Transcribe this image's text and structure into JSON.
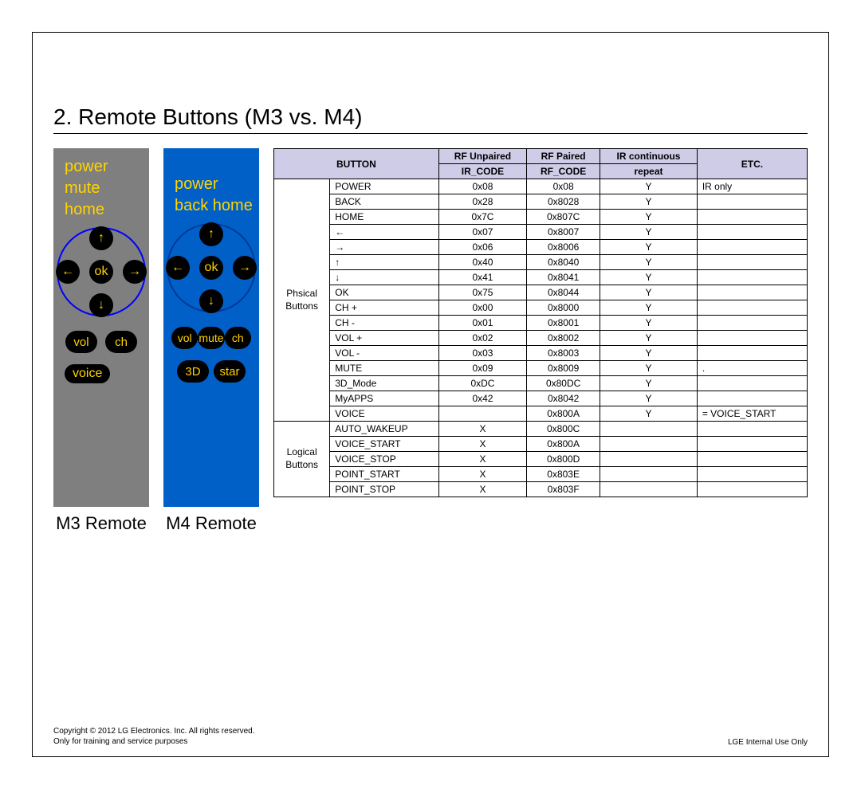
{
  "heading": "2. Remote Buttons (M3 vs. M4)",
  "remotes": {
    "m3": {
      "caption": "M3 Remote",
      "top_labels": [
        "power",
        "mute",
        "home"
      ],
      "ok": "ok",
      "arrows": {
        "up": "↑",
        "down": "↓",
        "left": "←",
        "right": "→"
      },
      "row_btns": [
        "vol",
        "ch"
      ],
      "voice": "voice"
    },
    "m4": {
      "caption": "M4 Remote",
      "top_labels": [
        "power",
        "back home"
      ],
      "ok": "ok",
      "arrows": {
        "up": "↑",
        "down": "↓",
        "left": "←",
        "right": "→"
      },
      "row_btns": [
        "vol",
        "mute",
        "ch"
      ],
      "row_3d": [
        "3D",
        "star"
      ]
    }
  },
  "table": {
    "headers": {
      "button": "BUTTON",
      "ir": "RF Unpaired",
      "ir_sub": "IR_CODE",
      "rf": "RF Paired",
      "rf_sub": "RF_CODE",
      "repeat": "IR continuous",
      "repeat_sub": "repeat",
      "etc": "ETC."
    },
    "groups": [
      {
        "name": "Phsical\nButtons",
        "rows": [
          {
            "btn": "POWER",
            "ir": "0x08",
            "rf": "0x08",
            "rep": "Y",
            "etc": "IR only"
          },
          {
            "btn": "BACK",
            "ir": "0x28",
            "rf": "0x8028",
            "rep": "Y",
            "etc": ""
          },
          {
            "btn": "HOME",
            "ir": "0x7C",
            "rf": "0x807C",
            "rep": "Y",
            "etc": ""
          },
          {
            "btn": "←",
            "ir": "0x07",
            "rf": "0x8007",
            "rep": "Y",
            "etc": ""
          },
          {
            "btn": "→",
            "ir": "0x06",
            "rf": "0x8006",
            "rep": "Y",
            "etc": ""
          },
          {
            "btn": "↑",
            "ir": "0x40",
            "rf": "0x8040",
            "rep": "Y",
            "etc": ""
          },
          {
            "btn": "↓",
            "ir": "0x41",
            "rf": "0x8041",
            "rep": "Y",
            "etc": ""
          },
          {
            "btn": "OK",
            "ir": "0x75",
            "rf": "0x8044",
            "rep": "Y",
            "etc": ""
          },
          {
            "btn": "CH +",
            "ir": "0x00",
            "rf": "0x8000",
            "rep": "Y",
            "etc": ""
          },
          {
            "btn": "CH -",
            "ir": "0x01",
            "rf": "0x8001",
            "rep": "Y",
            "etc": ""
          },
          {
            "btn": "VOL +",
            "ir": "0x02",
            "rf": "0x8002",
            "rep": "Y",
            "etc": ""
          },
          {
            "btn": "VOL -",
            "ir": "0x03",
            "rf": "0x8003",
            "rep": "Y",
            "etc": ""
          },
          {
            "btn": "MUTE",
            "ir": "0x09",
            "rf": "0x8009",
            "rep": "Y",
            "etc": "."
          },
          {
            "btn": "3D_Mode",
            "ir": "0xDC",
            "rf": "0x80DC",
            "rep": "Y",
            "etc": ""
          },
          {
            "btn": "MyAPPS",
            "ir": "0x42",
            "rf": "0x8042",
            "rep": "Y",
            "etc": ""
          },
          {
            "btn": "VOICE",
            "ir": "",
            "rf": "0x800A",
            "rep": "Y",
            "etc": "= VOICE_START"
          }
        ]
      },
      {
        "name": "Logical\nButtons",
        "rows": [
          {
            "btn": "AUTO_WAKEUP",
            "ir": "X",
            "rf": "0x800C",
            "rep": "",
            "etc": ""
          },
          {
            "btn": "VOICE_START",
            "ir": "X",
            "rf": "0x800A",
            "rep": "",
            "etc": ""
          },
          {
            "btn": "VOICE_STOP",
            "ir": "X",
            "rf": "0x800D",
            "rep": "",
            "etc": ""
          },
          {
            "btn": "POINT_START",
            "ir": "X",
            "rf": "0x803E",
            "rep": "",
            "etc": ""
          },
          {
            "btn": "POINT_STOP",
            "ir": "X",
            "rf": "0x803F",
            "rep": "",
            "etc": ""
          }
        ]
      }
    ]
  },
  "footer": {
    "copyright": "Copyright © 2012 LG Electronics. Inc. All rights reserved.",
    "note": "Only for training and service purposes",
    "right": "LGE Internal Use Only"
  }
}
